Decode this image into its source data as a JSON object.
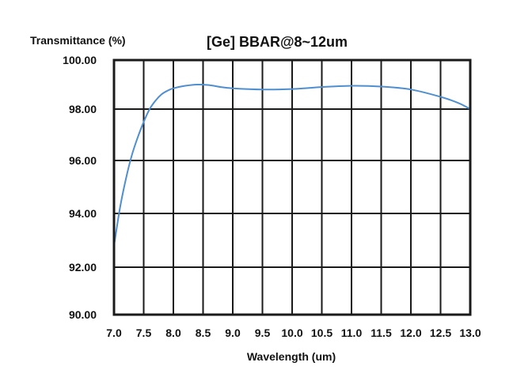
{
  "chart_data": {
    "type": "line",
    "title": "[Ge] BBAR@8~12um",
    "xlabel": "Wavelength (um)",
    "ylabel": "Transmittance (%)",
    "xlim": [
      7.0,
      13.0
    ],
    "ylim": [
      90.0,
      100.0
    ],
    "grid": true,
    "x_ticks": [
      "7.0",
      "7.5",
      "8.0",
      "8.5",
      "9.0",
      "9.5",
      "10.0",
      "10.5",
      "11.0",
      "11.5",
      "12.0",
      "12.5",
      "13.0"
    ],
    "y_ticks": [
      "90.00",
      "92.00",
      "94.00",
      "96.00",
      "98.00",
      "100.00"
    ],
    "line_color": "#4f8fcf",
    "series": [
      {
        "x": [
          7.0,
          7.1,
          7.2,
          7.3,
          7.4,
          7.5,
          7.6,
          7.7,
          7.8,
          7.9,
          8.0,
          8.2,
          8.4,
          8.6,
          8.8,
          9.0,
          9.5,
          10.0,
          10.5,
          11.0,
          11.5,
          12.0,
          12.5,
          12.8,
          13.0
        ],
        "values": [
          92.8,
          94.2,
          95.3,
          96.2,
          96.9,
          97.5,
          98.0,
          98.35,
          98.6,
          98.75,
          98.85,
          98.95,
          99.0,
          98.98,
          98.9,
          98.85,
          98.8,
          98.82,
          98.9,
          98.95,
          98.92,
          98.8,
          98.5,
          98.25,
          98.0
        ]
      }
    ]
  }
}
